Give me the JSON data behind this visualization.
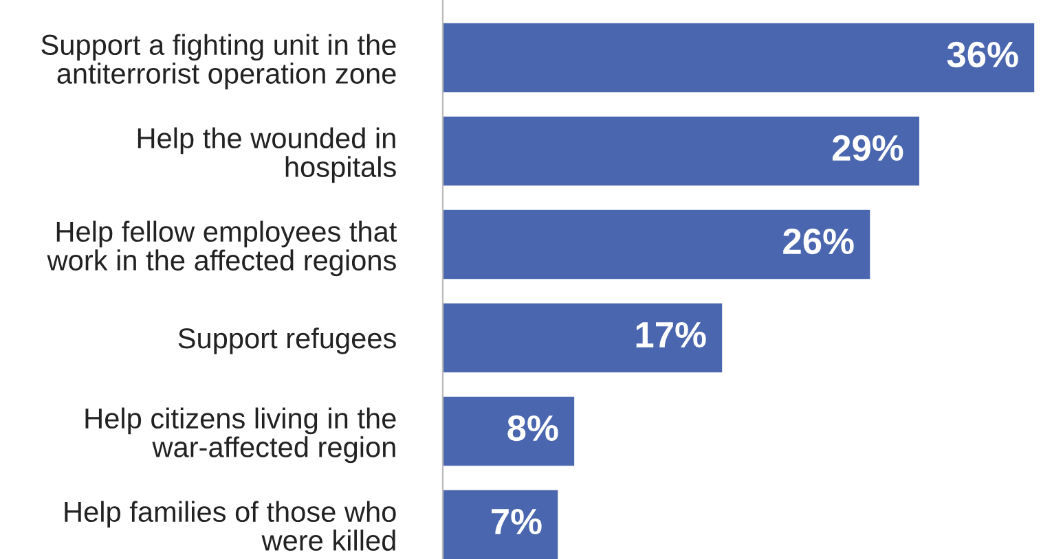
{
  "chart_data": {
    "type": "bar",
    "orientation": "horizontal",
    "categories": [
      "Support a fighting unit in the\nantiterrorist operation zone",
      "Help the wounded in\nhospitals",
      "Help fellow employees that\nwork in the affected regions",
      "Support refugees",
      "Help citizens living in the\nwar-affected region",
      "Help families of those who\nwere killed"
    ],
    "values": [
      36,
      29,
      26,
      17,
      8,
      7
    ],
    "color": "#4a66ae",
    "value_labels": [
      "36%",
      "29%",
      "26%",
      "17%",
      "8%",
      "7%"
    ],
    "tick_labels": "y",
    "grid": false,
    "legend": false
  }
}
